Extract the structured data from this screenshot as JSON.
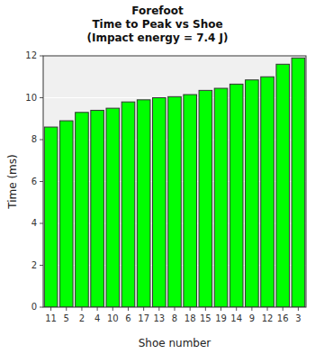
{
  "chart_data": {
    "type": "bar",
    "title": "Forefoot\nTime to Peak vs Shoe\n(Impact energy = 7.4 J)",
    "x_label": "Shoe number",
    "y_label": "Time (ms)",
    "categories": [
      "11",
      "5",
      "2",
      "4",
      "10",
      "6",
      "17",
      "13",
      "8",
      "18",
      "15",
      "19",
      "14",
      "9",
      "12",
      "16",
      "3"
    ],
    "values": [
      8.6,
      8.9,
      9.3,
      9.4,
      9.5,
      9.8,
      9.9,
      10.0,
      10.05,
      10.15,
      10.35,
      10.45,
      10.65,
      10.85,
      11.0,
      11.6,
      11.9
    ],
    "color": "#00FF00",
    "ylim": [
      0,
      12
    ],
    "yticks": [
      0,
      2,
      4,
      6,
      8,
      10,
      12
    ],
    "grid": true
  }
}
